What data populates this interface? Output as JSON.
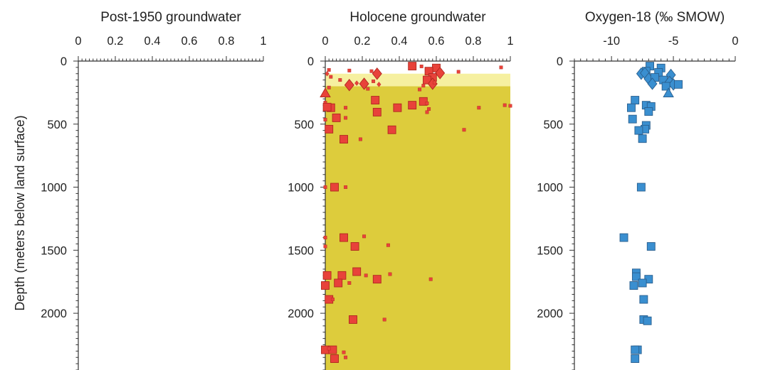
{
  "y_axis_label": "Depth (meters below land surface)",
  "chart_data": [
    {
      "type": "scatter",
      "title": "Post-1950 groundwater",
      "xlabel": "",
      "ylabel": "Depth (meters below land surface)",
      "xlim": [
        0,
        1
      ],
      "ylim": [
        0,
        2450
      ],
      "x_ticks": [
        "0",
        "0.2",
        "0.4",
        "0.6",
        "0.8",
        "1"
      ],
      "y_ticks": [
        "0",
        "500",
        "1000",
        "1500",
        "2000"
      ],
      "points": []
    },
    {
      "type": "scatter",
      "title": "Holocene groundwater",
      "xlabel": "",
      "ylabel": "Depth (meters below land surface)",
      "xlim": [
        0,
        1
      ],
      "ylim": [
        0,
        2450
      ],
      "x_ticks": [
        "0",
        "0.2",
        "0.4",
        "0.6",
        "0.8",
        "1"
      ],
      "y_ticks": [
        "0",
        "500",
        "1000",
        "1500",
        "2000"
      ],
      "marker_color": "#e8423a",
      "marker_edge": "#b0281f",
      "background_bands": [
        {
          "depth_from": 100,
          "depth_to": 200,
          "color": "#f6f0a0"
        },
        {
          "depth_from": 200,
          "depth_to": 2450,
          "color": "#ddcc3c"
        }
      ],
      "points": [
        {
          "x": 0.47,
          "y": 40,
          "m": "sq",
          "s": "L"
        },
        {
          "x": 0.6,
          "y": 55,
          "m": "sq",
          "s": "L"
        },
        {
          "x": 0.56,
          "y": 80,
          "m": "sq",
          "s": "L"
        },
        {
          "x": 0.25,
          "y": 80,
          "m": "sq",
          "s": "S"
        },
        {
          "x": 0.02,
          "y": 70,
          "m": "sq",
          "s": "S"
        },
        {
          "x": 0.13,
          "y": 75,
          "m": "sq",
          "s": "S"
        },
        {
          "x": 0.52,
          "y": 42,
          "m": "sq",
          "s": "S"
        },
        {
          "x": 0.95,
          "y": 50,
          "m": "sq",
          "s": "S"
        },
        {
          "x": 0.72,
          "y": 85,
          "m": "sq",
          "s": "S"
        },
        {
          "x": 0.28,
          "y": 100,
          "m": "dia",
          "s": "L"
        },
        {
          "x": 0.62,
          "y": 95,
          "m": "dia",
          "s": "L"
        },
        {
          "x": 0.01,
          "y": 100,
          "m": "dia",
          "s": "S"
        },
        {
          "x": 0.03,
          "y": 125,
          "m": "sq",
          "s": "S"
        },
        {
          "x": 0.08,
          "y": 150,
          "m": "sq",
          "s": "S"
        },
        {
          "x": 0.58,
          "y": 130,
          "m": "sq",
          "s": "L"
        },
        {
          "x": 0.55,
          "y": 150,
          "m": "sq",
          "s": "L"
        },
        {
          "x": 0.13,
          "y": 190,
          "m": "dia",
          "s": "L"
        },
        {
          "x": 0.21,
          "y": 180,
          "m": "dia",
          "s": "L"
        },
        {
          "x": 0.58,
          "y": 180,
          "m": "dia",
          "s": "L"
        },
        {
          "x": 0.26,
          "y": 160,
          "m": "sq",
          "s": "S"
        },
        {
          "x": 0.17,
          "y": 175,
          "m": "dia",
          "s": "S"
        },
        {
          "x": 0.29,
          "y": 185,
          "m": "dia",
          "s": "S"
        },
        {
          "x": 0.53,
          "y": 195,
          "m": "sq",
          "s": "S"
        },
        {
          "x": 0.59,
          "y": 170,
          "m": "sq",
          "s": "S"
        },
        {
          "x": 0.02,
          "y": 210,
          "m": "sq",
          "s": "S"
        },
        {
          "x": 0.23,
          "y": 220,
          "m": "sq",
          "s": "S"
        },
        {
          "x": 0.51,
          "y": 225,
          "m": "sq",
          "s": "S"
        },
        {
          "x": 0.0,
          "y": 255,
          "m": "tri",
          "s": "L"
        },
        {
          "x": 0.27,
          "y": 310,
          "m": "sq",
          "s": "L"
        },
        {
          "x": 0.53,
          "y": 320,
          "m": "sq",
          "s": "L"
        },
        {
          "x": 0.0,
          "y": 330,
          "m": "sq",
          "s": "S"
        },
        {
          "x": 0.55,
          "y": 335,
          "m": "sq",
          "s": "S"
        },
        {
          "x": 0.47,
          "y": 350,
          "m": "sq",
          "s": "L"
        },
        {
          "x": 0.03,
          "y": 370,
          "m": "sq",
          "s": "L"
        },
        {
          "x": 0.01,
          "y": 365,
          "m": "sq",
          "s": "L"
        },
        {
          "x": 0.11,
          "y": 370,
          "m": "sq",
          "s": "S"
        },
        {
          "x": 0.39,
          "y": 370,
          "m": "sq",
          "s": "L"
        },
        {
          "x": 0.56,
          "y": 380,
          "m": "sq",
          "s": "S"
        },
        {
          "x": 0.83,
          "y": 370,
          "m": "sq",
          "s": "S"
        },
        {
          "x": 0.97,
          "y": 350,
          "m": "sq",
          "s": "S"
        },
        {
          "x": 1.0,
          "y": 355,
          "m": "sq",
          "s": "S"
        },
        {
          "x": 0.28,
          "y": 405,
          "m": "sq",
          "s": "L"
        },
        {
          "x": 0.55,
          "y": 405,
          "m": "sq",
          "s": "S"
        },
        {
          "x": 0.06,
          "y": 450,
          "m": "sq",
          "s": "L"
        },
        {
          "x": 0.11,
          "y": 450,
          "m": "sq",
          "s": "S"
        },
        {
          "x": 0.0,
          "y": 465,
          "m": "sq",
          "s": "S"
        },
        {
          "x": 0.02,
          "y": 540,
          "m": "sq",
          "s": "L"
        },
        {
          "x": 0.36,
          "y": 545,
          "m": "sq",
          "s": "L"
        },
        {
          "x": 0.75,
          "y": 545,
          "m": "sq",
          "s": "S"
        },
        {
          "x": 0.1,
          "y": 620,
          "m": "sq",
          "s": "L"
        },
        {
          "x": 0.19,
          "y": 620,
          "m": "sq",
          "s": "S"
        },
        {
          "x": 0.05,
          "y": 1000,
          "m": "sq",
          "s": "L"
        },
        {
          "x": 0.0,
          "y": 1000,
          "m": "sq",
          "s": "S"
        },
        {
          "x": 0.11,
          "y": 1000,
          "m": "sq",
          "s": "S"
        },
        {
          "x": 0.1,
          "y": 1400,
          "m": "sq",
          "s": "L"
        },
        {
          "x": 0.21,
          "y": 1390,
          "m": "sq",
          "s": "S"
        },
        {
          "x": 0.0,
          "y": 1400,
          "m": "sq",
          "s": "S"
        },
        {
          "x": 0.16,
          "y": 1470,
          "m": "sq",
          "s": "L"
        },
        {
          "x": 0.34,
          "y": 1460,
          "m": "sq",
          "s": "S"
        },
        {
          "x": 0.0,
          "y": 1470,
          "m": "sq",
          "s": "S"
        },
        {
          "x": 0.17,
          "y": 1670,
          "m": "sq",
          "s": "L"
        },
        {
          "x": 0.01,
          "y": 1700,
          "m": "sq",
          "s": "L"
        },
        {
          "x": 0.09,
          "y": 1700,
          "m": "sq",
          "s": "L"
        },
        {
          "x": 0.22,
          "y": 1700,
          "m": "sq",
          "s": "S"
        },
        {
          "x": 0.35,
          "y": 1690,
          "m": "sq",
          "s": "S"
        },
        {
          "x": 0.28,
          "y": 1730,
          "m": "sq",
          "s": "L"
        },
        {
          "x": 0.57,
          "y": 1730,
          "m": "sq",
          "s": "S"
        },
        {
          "x": 0.07,
          "y": 1760,
          "m": "sq",
          "s": "L"
        },
        {
          "x": 0.0,
          "y": 1780,
          "m": "sq",
          "s": "L"
        },
        {
          "x": 0.13,
          "y": 1760,
          "m": "sq",
          "s": "S"
        },
        {
          "x": 0.02,
          "y": 1890,
          "m": "sq",
          "s": "L"
        },
        {
          "x": 0.04,
          "y": 1890,
          "m": "sq",
          "s": "S"
        },
        {
          "x": 0.15,
          "y": 2050,
          "m": "sq",
          "s": "L"
        },
        {
          "x": 0.32,
          "y": 2050,
          "m": "sq",
          "s": "S"
        },
        {
          "x": 0.0,
          "y": 2290,
          "m": "sq",
          "s": "L"
        },
        {
          "x": 0.04,
          "y": 2290,
          "m": "sq",
          "s": "L"
        },
        {
          "x": 0.02,
          "y": 2280,
          "m": "sq",
          "s": "S"
        },
        {
          "x": 0.1,
          "y": 2310,
          "m": "sq",
          "s": "S"
        },
        {
          "x": 0.05,
          "y": 2360,
          "m": "sq",
          "s": "L"
        },
        {
          "x": 0.11,
          "y": 2350,
          "m": "sq",
          "s": "S"
        }
      ]
    },
    {
      "type": "scatter",
      "title": "Oxygen-18 (‰ SMOW)",
      "xlabel": "",
      "ylabel": "Depth (meters below land surface)",
      "xlim": [
        -13,
        0
      ],
      "ylim": [
        0,
        2450
      ],
      "x_ticks": [
        "-10",
        "-5",
        "0"
      ],
      "y_ticks": [
        "0",
        "500",
        "1000",
        "1500",
        "2000"
      ],
      "marker_color": "#3a8fd0",
      "marker_edge": "#2a5f8e",
      "points": [
        {
          "x": -6.9,
          "y": 40,
          "m": "sq",
          "s": "L"
        },
        {
          "x": -6.0,
          "y": 55,
          "m": "sq",
          "s": "L"
        },
        {
          "x": -7.2,
          "y": 80,
          "m": "sq",
          "s": "L"
        },
        {
          "x": -7.6,
          "y": 100,
          "m": "dia",
          "s": "L"
        },
        {
          "x": -7.3,
          "y": 95,
          "m": "dia",
          "s": "L"
        },
        {
          "x": -6.2,
          "y": 90,
          "m": "sq",
          "s": "L"
        },
        {
          "x": -5.2,
          "y": 110,
          "m": "dia",
          "s": "L"
        },
        {
          "x": -7.0,
          "y": 140,
          "m": "dia",
          "s": "L"
        },
        {
          "x": -6.5,
          "y": 130,
          "m": "sq",
          "s": "L"
        },
        {
          "x": -5.8,
          "y": 150,
          "m": "sq",
          "s": "L"
        },
        {
          "x": -5.3,
          "y": 165,
          "m": "dia",
          "s": "L"
        },
        {
          "x": -5.0,
          "y": 185,
          "m": "dia",
          "s": "L"
        },
        {
          "x": -5.6,
          "y": 200,
          "m": "sq",
          "s": "L"
        },
        {
          "x": -6.7,
          "y": 180,
          "m": "dia",
          "s": "L"
        },
        {
          "x": -4.6,
          "y": 185,
          "m": "sq",
          "s": "L"
        },
        {
          "x": -5.4,
          "y": 255,
          "m": "tri",
          "s": "L"
        },
        {
          "x": -8.1,
          "y": 310,
          "m": "sq",
          "s": "L"
        },
        {
          "x": -7.2,
          "y": 350,
          "m": "sq",
          "s": "L"
        },
        {
          "x": -6.8,
          "y": 360,
          "m": "sq",
          "s": "L"
        },
        {
          "x": -8.4,
          "y": 370,
          "m": "sq",
          "s": "L"
        },
        {
          "x": -7.0,
          "y": 400,
          "m": "sq",
          "s": "L"
        },
        {
          "x": -8.3,
          "y": 460,
          "m": "sq",
          "s": "L"
        },
        {
          "x": -7.2,
          "y": 510,
          "m": "sq",
          "s": "L"
        },
        {
          "x": -7.3,
          "y": 540,
          "m": "sq",
          "s": "L"
        },
        {
          "x": -7.8,
          "y": 550,
          "m": "sq",
          "s": "L"
        },
        {
          "x": -7.5,
          "y": 615,
          "m": "sq",
          "s": "L"
        },
        {
          "x": -7.6,
          "y": 1000,
          "m": "sq",
          "s": "L"
        },
        {
          "x": -9.0,
          "y": 1400,
          "m": "sq",
          "s": "L"
        },
        {
          "x": -6.8,
          "y": 1470,
          "m": "sq",
          "s": "L"
        },
        {
          "x": -8.0,
          "y": 1680,
          "m": "sq",
          "s": "L"
        },
        {
          "x": -8.0,
          "y": 1710,
          "m": "sq",
          "s": "L"
        },
        {
          "x": -7.0,
          "y": 1730,
          "m": "sq",
          "s": "L"
        },
        {
          "x": -7.5,
          "y": 1760,
          "m": "sq",
          "s": "L"
        },
        {
          "x": -8.2,
          "y": 1780,
          "m": "sq",
          "s": "L"
        },
        {
          "x": -7.4,
          "y": 1890,
          "m": "sq",
          "s": "L"
        },
        {
          "x": -7.4,
          "y": 2050,
          "m": "sq",
          "s": "L"
        },
        {
          "x": -7.1,
          "y": 2060,
          "m": "sq",
          "s": "L"
        },
        {
          "x": -7.9,
          "y": 2290,
          "m": "sq",
          "s": "L"
        },
        {
          "x": -8.1,
          "y": 2290,
          "m": "sq",
          "s": "L"
        },
        {
          "x": -8.1,
          "y": 2360,
          "m": "sq",
          "s": "L"
        }
      ]
    }
  ]
}
